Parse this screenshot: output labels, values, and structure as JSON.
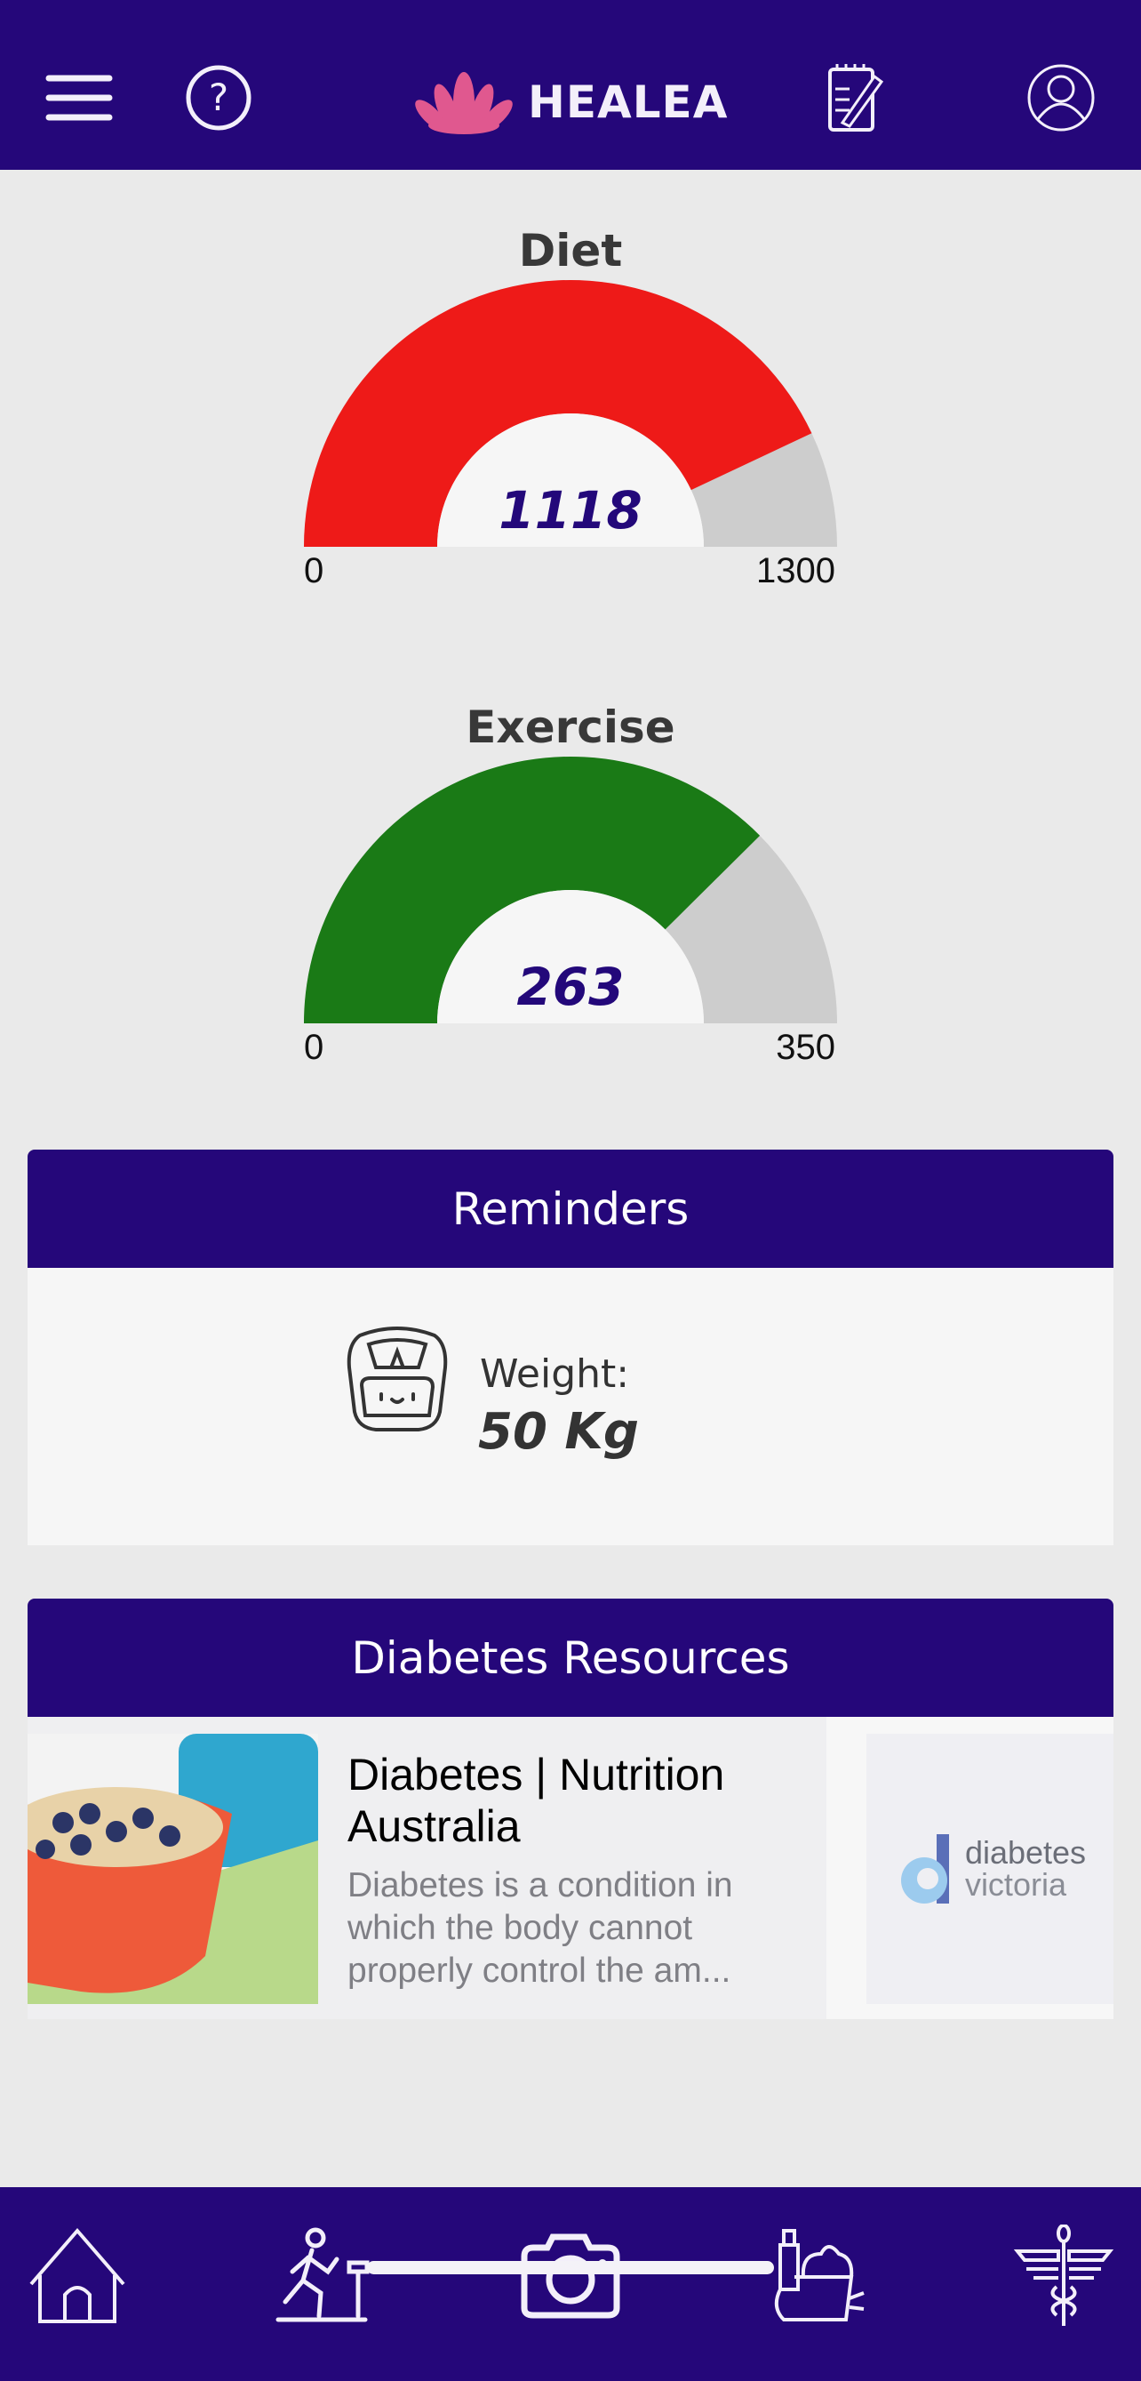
{
  "header": {
    "logo_text": "HEALEA",
    "icons": [
      "menu-icon",
      "help-icon",
      "notepad-icon",
      "profile-icon"
    ]
  },
  "gauges": [
    {
      "title": "Diet",
      "value": 1118,
      "value_label": "1118",
      "min_label": "0",
      "max_label": "1300",
      "min": 0,
      "max": 1300,
      "color": "#ee1a18"
    },
    {
      "title": "Exercise",
      "value": 263,
      "value_label": "263",
      "min_label": "0",
      "max_label": "350",
      "min": 0,
      "max": 350,
      "color": "#1a7a16"
    }
  ],
  "reminders": {
    "title": "Reminders",
    "weight_label": "Weight:",
    "weight_value": "50 Kg",
    "icon": "scale-icon"
  },
  "resources": {
    "title": "Diabetes Resources",
    "items": [
      {
        "title": "Diabetes | Nutrition Australia",
        "description": "Diabetes is a condition in which the body cannot properly control the am..."
      },
      {
        "logo_text_1": "diabetes",
        "logo_text_2": "victoria"
      }
    ]
  },
  "nav": {
    "icons": [
      "home-icon",
      "exercise-icon",
      "camera-icon",
      "groceries-icon",
      "medical-icon"
    ]
  },
  "colors": {
    "brand": "#25077a",
    "track": "#cdcdcd",
    "value": "#23087a"
  }
}
